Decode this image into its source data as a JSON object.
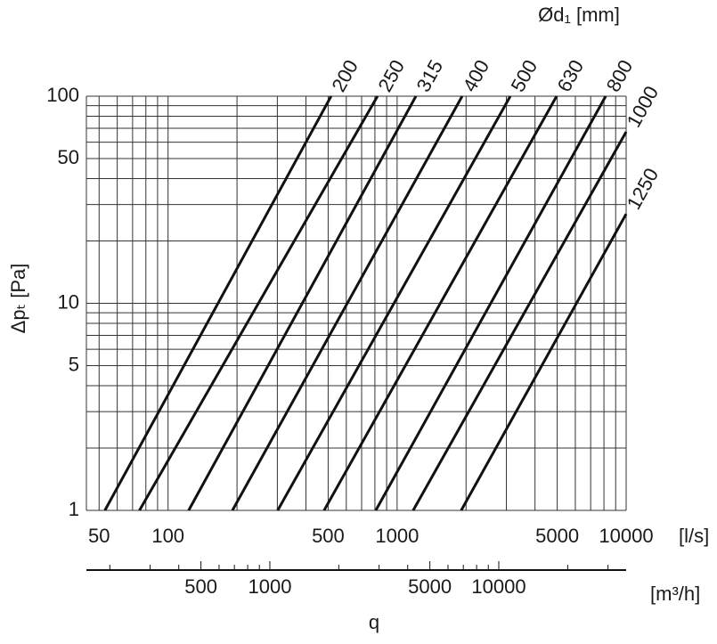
{
  "chart_data": {
    "type": "line",
    "log_x": true,
    "log_y": true,
    "grid": true,
    "color": "#111111",
    "legend_title": "Ød₁ [mm]",
    "ylabel": "Δpₜ [Pa]",
    "xunit": "[l/s]",
    "x2unit": "[m³/h]",
    "xlabel": "q",
    "xlim": [
      44,
      10000
    ],
    "ylim": [
      1,
      100
    ],
    "xticks": [
      50,
      100,
      500,
      1000,
      5000,
      10000
    ],
    "xminor": [
      60,
      70,
      80,
      90,
      200,
      300,
      400,
      600,
      700,
      800,
      900,
      2000,
      3000,
      4000,
      6000,
      7000,
      8000,
      9000
    ],
    "yticks": [
      1,
      5,
      10,
      50,
      100
    ],
    "yminor": [
      2,
      3,
      4,
      6,
      7,
      8,
      9,
      20,
      30,
      40,
      60,
      70,
      80,
      90
    ],
    "x2lim": [
      158,
      36000
    ],
    "x2ticks": [
      500,
      1000,
      5000,
      10000
    ],
    "x2minor": [
      200,
      300,
      400,
      600,
      700,
      800,
      900,
      2000,
      3000,
      4000,
      6000,
      7000,
      8000,
      9000,
      20000,
      30000
    ],
    "series": [
      {
        "name": "200",
        "x": [
          53,
          515
        ],
        "values": [
          1,
          100
        ]
      },
      {
        "name": "250",
        "x": [
          75,
          821
        ],
        "values": [
          1,
          100
        ]
      },
      {
        "name": "315",
        "x": [
          123,
          1208
        ],
        "values": [
          1,
          100
        ]
      },
      {
        "name": "400",
        "x": [
          191,
          1923
        ],
        "values": [
          1,
          100
        ]
      },
      {
        "name": "500",
        "x": [
          301,
          3120
        ],
        "values": [
          1,
          100
        ]
      },
      {
        "name": "630",
        "x": [
          480,
          4970
        ],
        "values": [
          1,
          100
        ]
      },
      {
        "name": "800",
        "x": [
          807,
          8140
        ],
        "values": [
          1,
          100
        ]
      },
      {
        "name": "1000",
        "x": [
          1175,
          10000
        ],
        "values": [
          1,
          67.3
        ]
      },
      {
        "name": "1250",
        "x": [
          1905,
          10000
        ],
        "values": [
          1,
          27
        ]
      }
    ]
  }
}
